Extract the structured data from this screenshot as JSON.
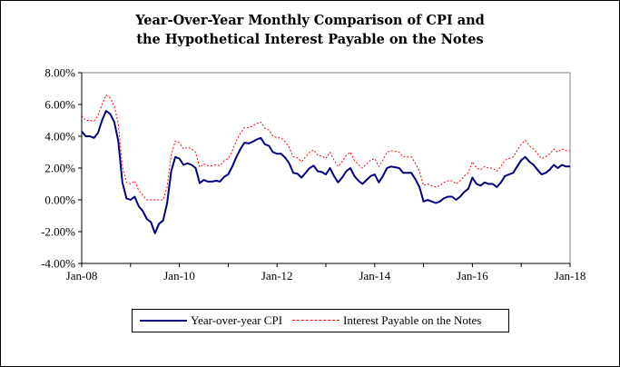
{
  "chart_data": {
    "type": "line",
    "title_lines": [
      "Year-Over-Year Monthly Comparison of CPI and",
      "the Hypothetical Interest  Payable on the Notes"
    ],
    "x_ticks": [
      {
        "label": "Jan-08",
        "year": 2008
      },
      {
        "label": "Jan-10",
        "year": 2010
      },
      {
        "label": "Jan-12",
        "year": 2012
      },
      {
        "label": "Jan-14",
        "year": 2014
      },
      {
        "label": "Jan-16",
        "year": 2016
      },
      {
        "label": "Jan-18",
        "year": 2018
      }
    ],
    "y_ticks": [
      "8.00%",
      "6.00%",
      "4.00%",
      "2.00%",
      "0.00%",
      "-2.00%",
      "-4.00%"
    ],
    "ylim": [
      -4,
      8
    ],
    "xlim": [
      2008,
      2018
    ],
    "grid": {
      "horizontal": false,
      "vertical": false
    },
    "legend_placement": "bottom",
    "series": [
      {
        "name": "Year-over-year CPI",
        "color": "#000080",
        "style": "solid",
        "points": [
          [
            2008.0,
            4.3
          ],
          [
            2008.0833,
            4.0
          ],
          [
            2008.1667,
            4.0
          ],
          [
            2008.25,
            3.9
          ],
          [
            2008.3333,
            4.2
          ],
          [
            2008.4167,
            5.0
          ],
          [
            2008.5,
            5.6
          ],
          [
            2008.5833,
            5.4
          ],
          [
            2008.6667,
            4.9
          ],
          [
            2008.75,
            3.7
          ],
          [
            2008.8333,
            1.1
          ],
          [
            2008.9167,
            0.1
          ],
          [
            2009.0,
            0.0
          ],
          [
            2009.0833,
            0.2
          ],
          [
            2009.1667,
            -0.4
          ],
          [
            2009.25,
            -0.7
          ],
          [
            2009.3333,
            -1.2
          ],
          [
            2009.4167,
            -1.4
          ],
          [
            2009.5,
            -2.1
          ],
          [
            2009.5833,
            -1.5
          ],
          [
            2009.6667,
            -1.3
          ],
          [
            2009.75,
            -0.2
          ],
          [
            2009.8333,
            1.8
          ],
          [
            2009.9167,
            2.7
          ],
          [
            2010.0,
            2.6
          ],
          [
            2010.0833,
            2.2
          ],
          [
            2010.1667,
            2.3
          ],
          [
            2010.25,
            2.2
          ],
          [
            2010.3333,
            2.0
          ],
          [
            2010.4167,
            1.05
          ],
          [
            2010.5,
            1.25
          ],
          [
            2010.5833,
            1.15
          ],
          [
            2010.6667,
            1.15
          ],
          [
            2010.75,
            1.2
          ],
          [
            2010.8333,
            1.15
          ],
          [
            2010.9167,
            1.45
          ],
          [
            2011.0,
            1.6
          ],
          [
            2011.0833,
            2.1
          ],
          [
            2011.1667,
            2.7
          ],
          [
            2011.25,
            3.2
          ],
          [
            2011.3333,
            3.6
          ],
          [
            2011.4167,
            3.55
          ],
          [
            2011.5,
            3.65
          ],
          [
            2011.5833,
            3.8
          ],
          [
            2011.6667,
            3.9
          ],
          [
            2011.75,
            3.5
          ],
          [
            2011.8333,
            3.4
          ],
          [
            2011.9167,
            3.0
          ],
          [
            2012.0,
            2.9
          ],
          [
            2012.0833,
            2.9
          ],
          [
            2012.1667,
            2.65
          ],
          [
            2012.25,
            2.3
          ],
          [
            2012.3333,
            1.7
          ],
          [
            2012.4167,
            1.65
          ],
          [
            2012.5,
            1.4
          ],
          [
            2012.5833,
            1.7
          ],
          [
            2012.6667,
            2.0
          ],
          [
            2012.75,
            2.15
          ],
          [
            2012.8333,
            1.8
          ],
          [
            2012.9167,
            1.75
          ],
          [
            2013.0,
            1.6
          ],
          [
            2013.0833,
            2.0
          ],
          [
            2013.1667,
            1.5
          ],
          [
            2013.25,
            1.1
          ],
          [
            2013.3333,
            1.4
          ],
          [
            2013.4167,
            1.8
          ],
          [
            2013.5,
            2.0
          ],
          [
            2013.5833,
            1.5
          ],
          [
            2013.6667,
            1.2
          ],
          [
            2013.75,
            1.0
          ],
          [
            2013.8333,
            1.25
          ],
          [
            2013.9167,
            1.5
          ],
          [
            2014.0,
            1.6
          ],
          [
            2014.0833,
            1.1
          ],
          [
            2014.1667,
            1.5
          ],
          [
            2014.25,
            2.0
          ],
          [
            2014.3333,
            2.1
          ],
          [
            2014.4167,
            2.05
          ],
          [
            2014.5,
            2.0
          ],
          [
            2014.5833,
            1.7
          ],
          [
            2014.6667,
            1.7
          ],
          [
            2014.75,
            1.7
          ],
          [
            2014.8333,
            1.3
          ],
          [
            2014.9167,
            0.8
          ],
          [
            2015.0,
            -0.1
          ],
          [
            2015.0833,
            0.0
          ],
          [
            2015.1667,
            -0.1
          ],
          [
            2015.25,
            -0.2
          ],
          [
            2015.3333,
            -0.1
          ],
          [
            2015.4167,
            0.1
          ],
          [
            2015.5,
            0.2
          ],
          [
            2015.5833,
            0.2
          ],
          [
            2015.6667,
            0.0
          ],
          [
            2015.75,
            0.2
          ],
          [
            2015.8333,
            0.5
          ],
          [
            2015.9167,
            0.7
          ],
          [
            2016.0,
            1.4
          ],
          [
            2016.0833,
            1.0
          ],
          [
            2016.1667,
            0.9
          ],
          [
            2016.25,
            1.1
          ],
          [
            2016.3333,
            1.0
          ],
          [
            2016.4167,
            1.0
          ],
          [
            2016.5,
            0.8
          ],
          [
            2016.5833,
            1.1
          ],
          [
            2016.6667,
            1.5
          ],
          [
            2016.75,
            1.6
          ],
          [
            2016.8333,
            1.7
          ],
          [
            2016.9167,
            2.1
          ],
          [
            2017.0,
            2.5
          ],
          [
            2017.0833,
            2.7
          ],
          [
            2017.1667,
            2.4
          ],
          [
            2017.25,
            2.2
          ],
          [
            2017.3333,
            1.9
          ],
          [
            2017.4167,
            1.6
          ],
          [
            2017.5,
            1.7
          ],
          [
            2017.5833,
            1.9
          ],
          [
            2017.6667,
            2.2
          ],
          [
            2017.75,
            2.0
          ],
          [
            2017.8333,
            2.2
          ],
          [
            2017.9167,
            2.1
          ],
          [
            2018.0,
            2.1
          ]
        ]
      },
      {
        "name": "Interest Payable on the Notes",
        "color": "#ff0000",
        "style": "dotted",
        "points": [
          [
            2008.0,
            5.3
          ],
          [
            2008.0833,
            5.0
          ],
          [
            2008.1667,
            5.0
          ],
          [
            2008.25,
            4.95
          ],
          [
            2008.3333,
            5.3
          ],
          [
            2008.4167,
            6.0
          ],
          [
            2008.5,
            6.6
          ],
          [
            2008.5833,
            6.4
          ],
          [
            2008.6667,
            5.9
          ],
          [
            2008.75,
            4.8
          ],
          [
            2008.8333,
            2.1
          ],
          [
            2008.9167,
            1.1
          ],
          [
            2009.0,
            1.0
          ],
          [
            2009.0833,
            1.2
          ],
          [
            2009.1667,
            0.6
          ],
          [
            2009.25,
            0.3
          ],
          [
            2009.3333,
            0.0
          ],
          [
            2009.4167,
            0.0
          ],
          [
            2009.5,
            0.0
          ],
          [
            2009.5833,
            0.0
          ],
          [
            2009.6667,
            0.0
          ],
          [
            2009.75,
            0.8
          ],
          [
            2009.8333,
            2.8
          ],
          [
            2009.9167,
            3.7
          ],
          [
            2010.0,
            3.6
          ],
          [
            2010.0833,
            3.2
          ],
          [
            2010.1667,
            3.3
          ],
          [
            2010.25,
            3.2
          ],
          [
            2010.3333,
            3.0
          ],
          [
            2010.4167,
            2.05
          ],
          [
            2010.5,
            2.25
          ],
          [
            2010.5833,
            2.15
          ],
          [
            2010.6667,
            2.15
          ],
          [
            2010.75,
            2.2
          ],
          [
            2010.8333,
            2.15
          ],
          [
            2010.9167,
            2.45
          ],
          [
            2011.0,
            2.6
          ],
          [
            2011.0833,
            3.1
          ],
          [
            2011.1667,
            3.7
          ],
          [
            2011.25,
            4.2
          ],
          [
            2011.3333,
            4.55
          ],
          [
            2011.4167,
            4.55
          ],
          [
            2011.5,
            4.65
          ],
          [
            2011.5833,
            4.8
          ],
          [
            2011.6667,
            4.9
          ],
          [
            2011.75,
            4.5
          ],
          [
            2011.8333,
            4.4
          ],
          [
            2011.9167,
            4.0
          ],
          [
            2012.0,
            3.9
          ],
          [
            2012.0833,
            3.9
          ],
          [
            2012.1667,
            3.65
          ],
          [
            2012.25,
            3.3
          ],
          [
            2012.3333,
            2.7
          ],
          [
            2012.4167,
            2.65
          ],
          [
            2012.5,
            2.4
          ],
          [
            2012.5833,
            2.7
          ],
          [
            2012.6667,
            3.0
          ],
          [
            2012.75,
            3.15
          ],
          [
            2012.8333,
            2.8
          ],
          [
            2012.9167,
            2.75
          ],
          [
            2013.0,
            2.6
          ],
          [
            2013.0833,
            3.0
          ],
          [
            2013.1667,
            2.5
          ],
          [
            2013.25,
            2.1
          ],
          [
            2013.3333,
            2.4
          ],
          [
            2013.4167,
            2.8
          ],
          [
            2013.5,
            3.0
          ],
          [
            2013.5833,
            2.5
          ],
          [
            2013.6667,
            2.2
          ],
          [
            2013.75,
            2.0
          ],
          [
            2013.8333,
            2.25
          ],
          [
            2013.9167,
            2.5
          ],
          [
            2014.0,
            2.6
          ],
          [
            2014.0833,
            2.1
          ],
          [
            2014.1667,
            2.5
          ],
          [
            2014.25,
            3.0
          ],
          [
            2014.3333,
            3.1
          ],
          [
            2014.4167,
            3.05
          ],
          [
            2014.5,
            3.0
          ],
          [
            2014.5833,
            2.7
          ],
          [
            2014.6667,
            2.7
          ],
          [
            2014.75,
            2.7
          ],
          [
            2014.8333,
            2.3
          ],
          [
            2014.9167,
            1.8
          ],
          [
            2015.0,
            0.9
          ],
          [
            2015.0833,
            1.0
          ],
          [
            2015.1667,
            0.9
          ],
          [
            2015.25,
            0.8
          ],
          [
            2015.3333,
            0.9
          ],
          [
            2015.4167,
            1.1
          ],
          [
            2015.5,
            1.2
          ],
          [
            2015.5833,
            1.2
          ],
          [
            2015.6667,
            1.0
          ],
          [
            2015.75,
            1.2
          ],
          [
            2015.8333,
            1.5
          ],
          [
            2015.9167,
            1.7
          ],
          [
            2016.0,
            2.4
          ],
          [
            2016.0833,
            2.0
          ],
          [
            2016.1667,
            1.9
          ],
          [
            2016.25,
            2.1
          ],
          [
            2016.3333,
            2.0
          ],
          [
            2016.4167,
            2.0
          ],
          [
            2016.5,
            1.8
          ],
          [
            2016.5833,
            2.1
          ],
          [
            2016.6667,
            2.5
          ],
          [
            2016.75,
            2.6
          ],
          [
            2016.8333,
            2.7
          ],
          [
            2016.9167,
            3.1
          ],
          [
            2017.0,
            3.5
          ],
          [
            2017.0833,
            3.75
          ],
          [
            2017.1667,
            3.4
          ],
          [
            2017.25,
            3.2
          ],
          [
            2017.3333,
            2.9
          ],
          [
            2017.4167,
            2.6
          ],
          [
            2017.5,
            2.7
          ],
          [
            2017.5833,
            2.9
          ],
          [
            2017.6667,
            3.2
          ],
          [
            2017.75,
            3.0
          ],
          [
            2017.8333,
            3.2
          ],
          [
            2017.9167,
            3.1
          ],
          [
            2018.0,
            3.1
          ]
        ]
      }
    ]
  }
}
